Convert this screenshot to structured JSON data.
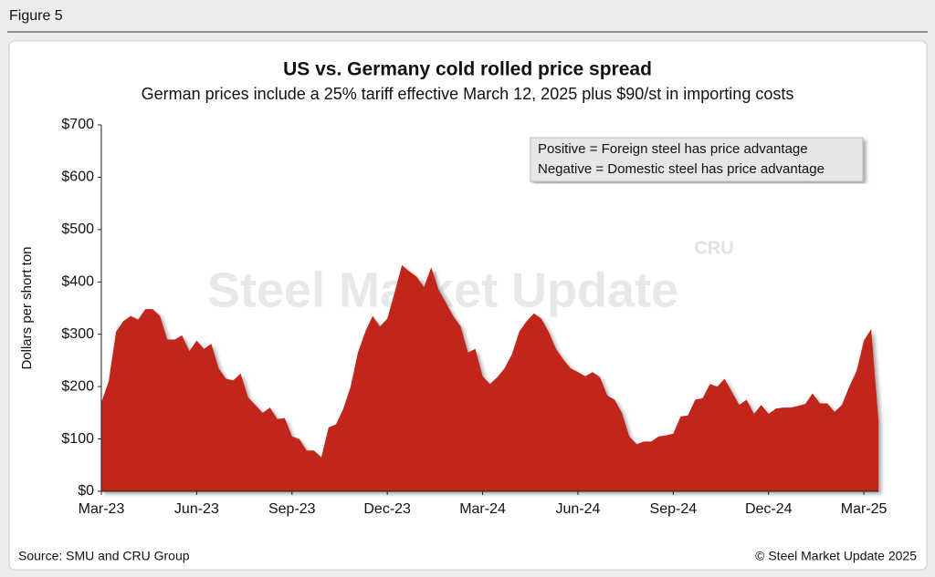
{
  "figure_label": "Figure 5",
  "chart_data": {
    "type": "area",
    "title": "US vs. Germany cold rolled price spread",
    "subtitle": "German prices include a 25% tariff effective March 12, 2025 plus $90/st in importing costs",
    "y_label": "Dollars per short ton",
    "annotations": [
      "Positive = Foreign steel has price advantage",
      "Negative = Domestic steel has price advantage"
    ],
    "watermark": [
      "Steel Market Update",
      "CRU"
    ],
    "source": "Source: SMU and CRU Group",
    "copyright": "© Steel Market Update 2025",
    "color": "#c1281c",
    "categories": [
      "Mar-23",
      null,
      null,
      null,
      null,
      null,
      null,
      null,
      null,
      null,
      null,
      null,
      null,
      "Jun-23",
      null,
      null,
      null,
      null,
      null,
      null,
      null,
      null,
      null,
      null,
      null,
      null,
      "Sep-23",
      null,
      null,
      null,
      null,
      null,
      null,
      null,
      null,
      null,
      null,
      null,
      null,
      "Dec-23",
      null,
      null,
      null,
      null,
      null,
      null,
      null,
      null,
      null,
      null,
      null,
      null,
      "Mar-24",
      null,
      null,
      null,
      null,
      null,
      null,
      null,
      null,
      null,
      null,
      null,
      null,
      "Jun-24",
      null,
      null,
      null,
      null,
      null,
      null,
      null,
      null,
      null,
      null,
      null,
      null,
      "Sep-24",
      null,
      null,
      null,
      null,
      null,
      null,
      null,
      null,
      null,
      null,
      null,
      null,
      "Dec-24",
      null,
      null,
      null,
      null,
      null,
      null,
      null,
      null,
      null,
      null,
      null,
      null,
      "Mar-25",
      null,
      null
    ],
    "values": [
      170,
      210,
      305,
      325,
      335,
      328,
      348,
      348,
      335,
      290,
      290,
      298,
      268,
      288,
      272,
      282,
      235,
      215,
      212,
      225,
      180,
      165,
      150,
      160,
      138,
      140,
      105,
      100,
      78,
      78,
      65,
      122,
      128,
      158,
      200,
      265,
      305,
      335,
      315,
      330,
      380,
      432,
      420,
      410,
      390,
      428,
      385,
      360,
      335,
      315,
      265,
      272,
      220,
      205,
      218,
      235,
      262,
      305,
      325,
      340,
      330,
      305,
      272,
      252,
      235,
      228,
      220,
      228,
      218,
      183,
      175,
      150,
      105,
      90,
      95,
      95,
      105,
      107,
      110,
      143,
      145,
      175,
      178,
      205,
      200,
      215,
      190,
      165,
      175,
      148,
      165,
      148,
      158,
      160,
      160,
      163,
      167,
      187,
      168,
      168,
      152,
      165,
      200,
      230,
      288,
      310,
      135
    ],
    "ylim": [
      0,
      700
    ],
    "yticks": [
      {
        "value": 0,
        "label": "$0"
      },
      {
        "value": 100,
        "label": "$100"
      },
      {
        "value": 200,
        "label": "$200"
      },
      {
        "value": 300,
        "label": "$300"
      },
      {
        "value": 400,
        "label": "$400"
      },
      {
        "value": 500,
        "label": "$500"
      },
      {
        "value": 600,
        "label": "$600"
      },
      {
        "value": 700,
        "label": "$700"
      }
    ],
    "grid": false
  }
}
